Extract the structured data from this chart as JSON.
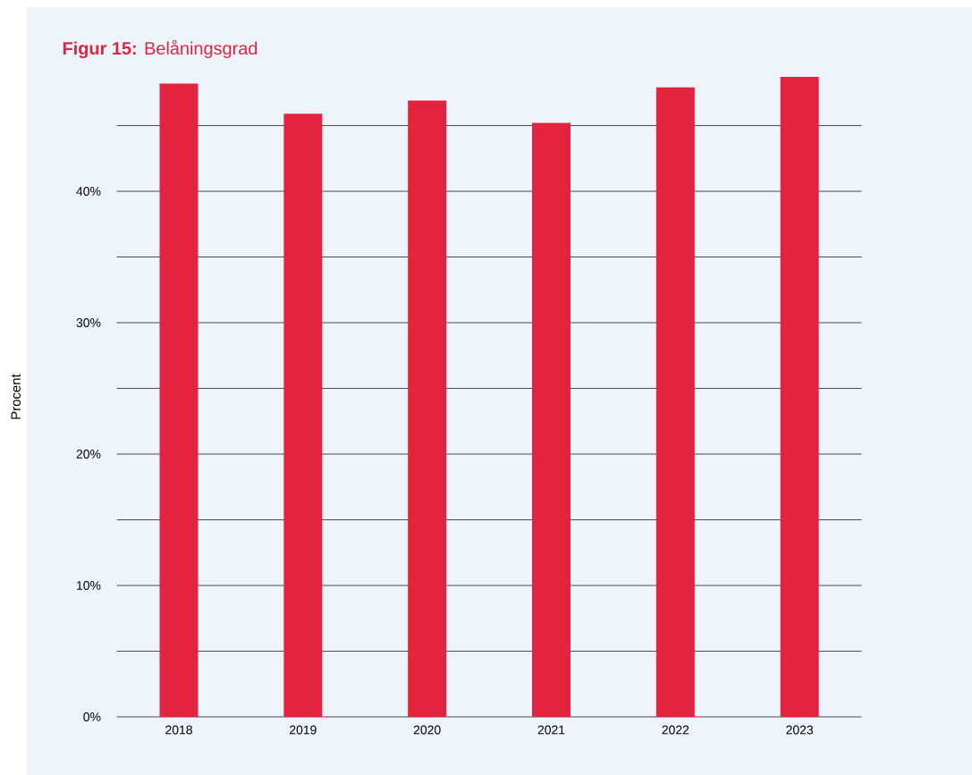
{
  "chart_data": {
    "type": "bar",
    "title": "**Figur 15:** Belåningsgrad",
    "ylabel": "Procent",
    "categories": [
      "2018",
      "2019",
      "2020",
      "2021",
      "2022",
      "2023"
    ],
    "values": [
      48.2,
      45.9,
      46.9,
      45.2,
      47.9,
      48.7
    ],
    "color": "#e4233f",
    "yticks": [
      {
        "value": 0,
        "label": "0%"
      },
      {
        "value": 5,
        "label": null
      },
      {
        "value": 10,
        "label": "10%"
      },
      {
        "value": 15,
        "label": null
      },
      {
        "value": 20,
        "label": "20%"
      },
      {
        "value": 25,
        "label": null
      },
      {
        "value": 30,
        "label": "30%"
      },
      {
        "value": 35,
        "label": null
      },
      {
        "value": 40,
        "label": "40%"
      },
      {
        "value": 45,
        "label": null
      }
    ],
    "ylim": [
      0,
      48.7
    ],
    "grid": "y"
  }
}
